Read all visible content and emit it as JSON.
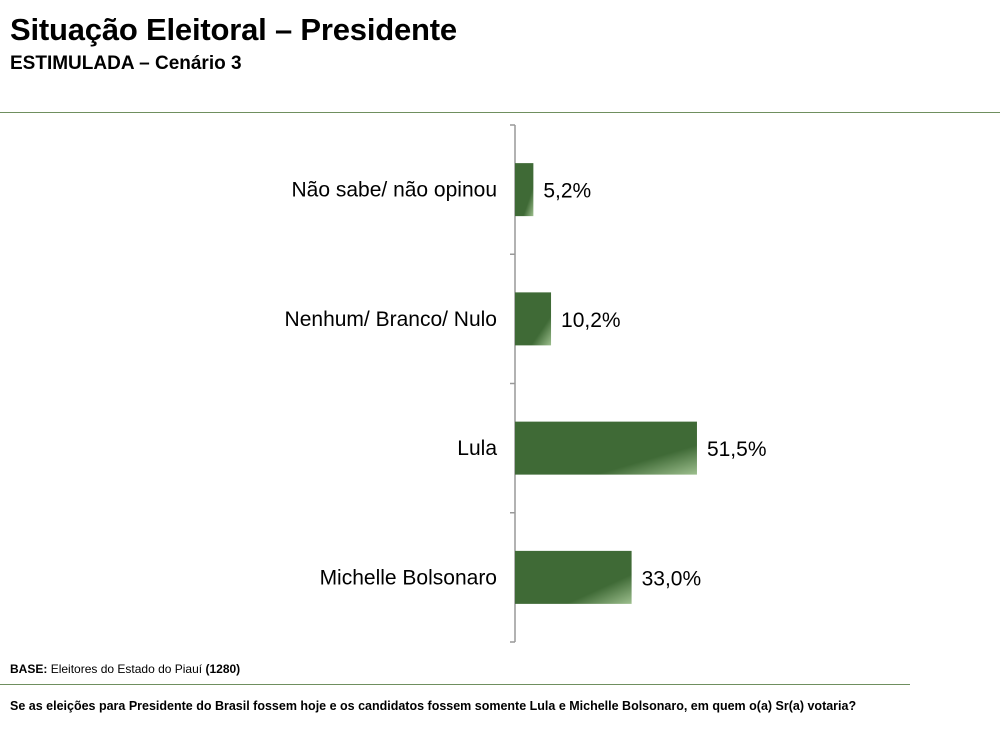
{
  "title": "Situação Eleitoral – Presidente",
  "subtitle": "ESTIMULADA – Cenário 3",
  "base": {
    "label": "BASE:",
    "text": "Eleitores do Estado do Piauí",
    "count": "(1280)"
  },
  "question": "Se as eleições para Presidente do Brasil fossem hoje e os candidatos fossem somente Lula e Michelle Bolsonaro, em quem o(a) Sr(a) votaria?",
  "colors": {
    "bar_dark": "#3f6a36",
    "bar_light": "#9dbf8e",
    "axis": "#999999",
    "rule": "#6f8f5f"
  },
  "chart_data": {
    "type": "bar",
    "orientation": "horizontal",
    "categories": [
      "Não sabe/ não opinou",
      "Nenhum/ Branco/ Nulo",
      "Lula",
      "Michelle Bolsonaro"
    ],
    "values": [
      5.2,
      10.2,
      51.5,
      33.0
    ],
    "value_labels": [
      "5,2%",
      "10,2%",
      "51,5%",
      "33,0%"
    ],
    "xlim": [
      0,
      100
    ],
    "grid": false,
    "legend": "none"
  }
}
